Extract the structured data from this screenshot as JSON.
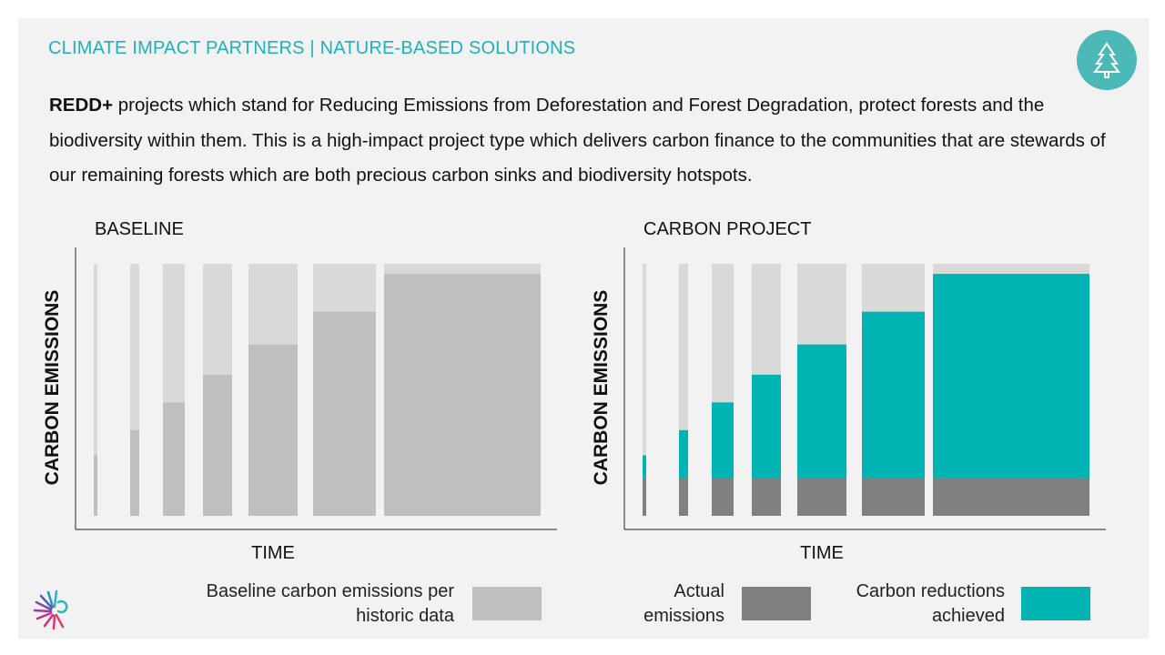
{
  "header": {
    "title": "CLIMATE IMPACT PARTNERS | NATURE-BASED SOLUTIONS"
  },
  "intro": {
    "bold": "REDD+",
    "text": "projects which stand for Reducing Emissions from Deforestation and Forest Degradation, protect forests and the biodiversity within them. This is a high-impact project type which delivers carbon finance to the communities that are stewards of our remaining forests which are both precious carbon sinks and biodiversity hotspots."
  },
  "chart_data": [
    {
      "type": "bar",
      "title": "BASELINE",
      "y_label": "CARBON EMISSIONS",
      "x_label": "TIME",
      "categories": [
        null,
        null,
        null,
        null,
        null,
        null,
        null
      ],
      "ylim": [
        0,
        100
      ],
      "series": [
        {
          "name": "Baseline carbon emissions per historic data",
          "color": "#bfbfbf",
          "values": [
            24,
            34,
            45,
            56,
            68,
            81,
            96
          ]
        }
      ]
    },
    {
      "type": "stacked_bar",
      "title": "CARBON PROJECT",
      "y_label": "CARBON EMISSIONS",
      "x_label": "TIME",
      "categories": [
        null,
        null,
        null,
        null,
        null,
        null,
        null
      ],
      "ylim": [
        0,
        100
      ],
      "series": [
        {
          "name": "Actual emissions",
          "color": "#808080",
          "values": [
            15,
            15,
            15,
            15,
            15,
            15,
            15
          ]
        },
        {
          "name": "Carbon reductions achieved",
          "color": "#02b3b3",
          "values": [
            9,
            19,
            30,
            41,
            53,
            66,
            81
          ]
        }
      ]
    }
  ]
}
